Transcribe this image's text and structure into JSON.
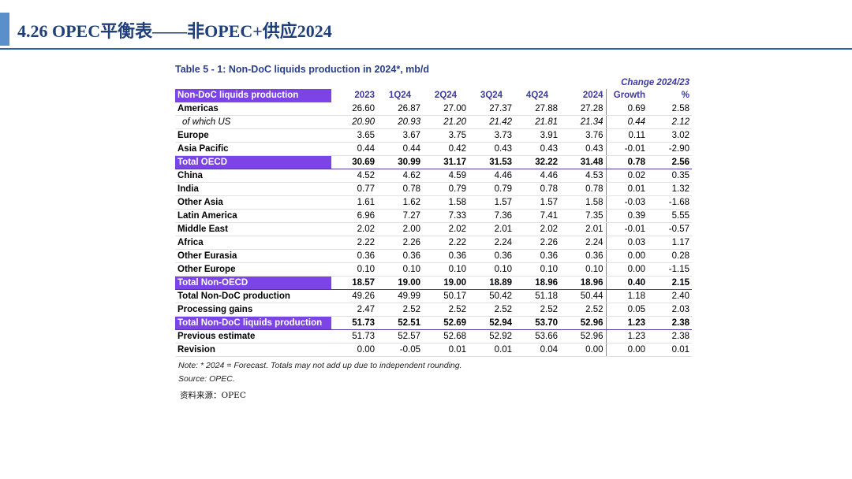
{
  "header": {
    "title": "4.26 OPEC平衡表——非OPEC+供应2024",
    "accent_color": "#5b8fc9"
  },
  "table": {
    "caption": "Table 5 - 1: Non-DoC liquids production in 2024*, mb/d",
    "change_header": "Change 2024/23",
    "header_label": "Non-DoC liquids production",
    "columns": [
      "2023",
      "1Q24",
      "2Q24",
      "3Q24",
      "4Q24",
      "2024",
      "Growth",
      "%"
    ],
    "rows": [
      {
        "label": "Americas",
        "values": [
          "26.60",
          "26.87",
          "27.00",
          "27.37",
          "27.88",
          "27.28",
          "0.69",
          "2.58"
        ]
      },
      {
        "label": "of which US",
        "values": [
          "20.90",
          "20.93",
          "21.20",
          "21.42",
          "21.81",
          "21.34",
          "0.44",
          "2.12"
        ]
      },
      {
        "label": "Europe",
        "values": [
          "3.65",
          "3.67",
          "3.75",
          "3.73",
          "3.91",
          "3.76",
          "0.11",
          "3.02"
        ]
      },
      {
        "label": "Asia Pacific",
        "values": [
          "0.44",
          "0.44",
          "0.42",
          "0.43",
          "0.43",
          "0.43",
          "-0.01",
          "-2.90"
        ]
      },
      {
        "label": "Total OECD",
        "values": [
          "30.69",
          "30.99",
          "31.17",
          "31.53",
          "32.22",
          "31.48",
          "0.78",
          "2.56"
        ]
      },
      {
        "label": "China",
        "values": [
          "4.52",
          "4.62",
          "4.59",
          "4.46",
          "4.46",
          "4.53",
          "0.02",
          "0.35"
        ]
      },
      {
        "label": "India",
        "values": [
          "0.77",
          "0.78",
          "0.79",
          "0.79",
          "0.78",
          "0.78",
          "0.01",
          "1.32"
        ]
      },
      {
        "label": "Other Asia",
        "values": [
          "1.61",
          "1.62",
          "1.58",
          "1.57",
          "1.57",
          "1.58",
          "-0.03",
          "-1.68"
        ]
      },
      {
        "label": "Latin America",
        "values": [
          "6.96",
          "7.27",
          "7.33",
          "7.36",
          "7.41",
          "7.35",
          "0.39",
          "5.55"
        ]
      },
      {
        "label": "Middle East",
        "values": [
          "2.02",
          "2.00",
          "2.02",
          "2.01",
          "2.02",
          "2.01",
          "-0.01",
          "-0.57"
        ]
      },
      {
        "label": "Africa",
        "values": [
          "2.22",
          "2.26",
          "2.22",
          "2.24",
          "2.26",
          "2.24",
          "0.03",
          "1.17"
        ]
      },
      {
        "label": "Other Eurasia",
        "values": [
          "0.36",
          "0.36",
          "0.36",
          "0.36",
          "0.36",
          "0.36",
          "0.00",
          "0.28"
        ]
      },
      {
        "label": "Other Europe",
        "values": [
          "0.10",
          "0.10",
          "0.10",
          "0.10",
          "0.10",
          "0.10",
          "0.00",
          "-1.15"
        ]
      },
      {
        "label": "Total Non-OECD",
        "values": [
          "18.57",
          "19.00",
          "19.00",
          "18.89",
          "18.96",
          "18.96",
          "0.40",
          "2.15"
        ]
      },
      {
        "label": "Total Non-DoC production",
        "values": [
          "49.26",
          "49.99",
          "50.17",
          "50.42",
          "51.18",
          "50.44",
          "1.18",
          "2.40"
        ]
      },
      {
        "label": "Processing gains",
        "values": [
          "2.47",
          "2.52",
          "2.52",
          "2.52",
          "2.52",
          "2.52",
          "0.05",
          "2.03"
        ]
      },
      {
        "label": "Total Non-DoC liquids production",
        "values": [
          "51.73",
          "52.51",
          "52.69",
          "52.94",
          "53.70",
          "52.96",
          "1.23",
          "2.38"
        ]
      },
      {
        "label": "Previous estimate",
        "values": [
          "51.73",
          "52.57",
          "52.68",
          "52.92",
          "53.66",
          "52.96",
          "1.23",
          "2.38"
        ]
      },
      {
        "label": "Revision",
        "values": [
          "0.00",
          "-0.05",
          "0.01",
          "0.01",
          "0.04",
          "0.00",
          "0.00",
          "0.01"
        ]
      }
    ],
    "note": "Note: * 2024 = Forecast. Totals may not add up due to independent rounding.",
    "source": "Source: OPEC."
  },
  "footer": {
    "source_cn": "资料来源：OPEC"
  },
  "colors": {
    "highlight": "#7c43e6",
    "caption": "#2a3e88",
    "header_rule": "#2c63a8"
  }
}
